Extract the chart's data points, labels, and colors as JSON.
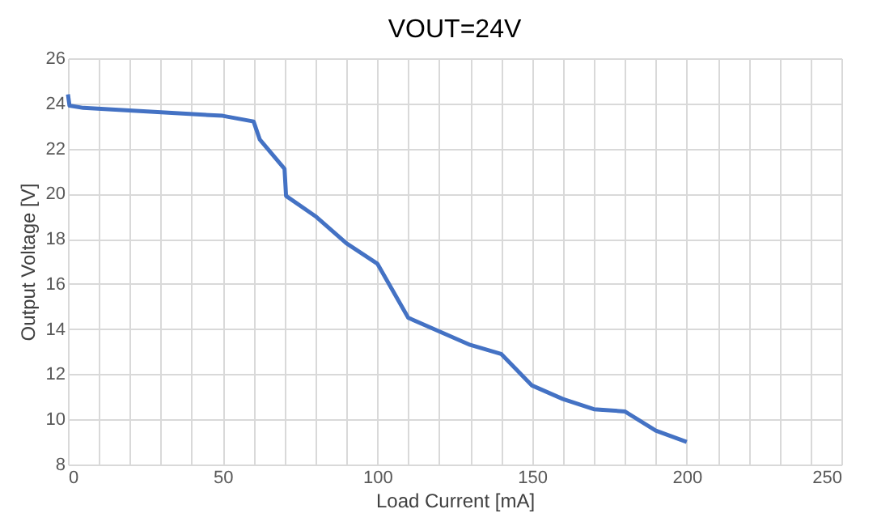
{
  "chart_data": {
    "type": "line",
    "title": "VOUT=24V",
    "xlabel": "Load Current  [mA]",
    "ylabel": "Output Voltage [V]",
    "series": [
      {
        "color": "#4472c4",
        "x": [
          0,
          0.5,
          5,
          50,
          60,
          62,
          70,
          70.5,
          80,
          90,
          100,
          110,
          120,
          130,
          140,
          150,
          160,
          170,
          180,
          190,
          200
        ],
        "values": [
          24.4,
          23.9,
          23.8,
          23.45,
          23.2,
          22.4,
          21.1,
          19.9,
          19,
          17.8,
          16.9,
          14.5,
          13.9,
          13.3,
          12.9,
          11.5,
          10.9,
          10.45,
          10.35,
          9.5,
          9.0
        ]
      }
    ],
    "xlim": [
      0,
      250
    ],
    "xticks": [
      0,
      {
        "value": 10,
        "label": null
      },
      {
        "value": 20,
        "label": null
      },
      {
        "value": 30,
        "label": null
      },
      {
        "value": 40,
        "label": null
      },
      50,
      {
        "value": 60,
        "label": null
      },
      {
        "value": 70,
        "label": null
      },
      {
        "value": 80,
        "label": null
      },
      {
        "value": 90,
        "label": null
      },
      100,
      {
        "value": 110,
        "label": null
      },
      {
        "value": 120,
        "label": null
      },
      {
        "value": 130,
        "label": null
      },
      {
        "value": 140,
        "label": null
      },
      150,
      {
        "value": 160,
        "label": null
      },
      {
        "value": 170,
        "label": null
      },
      {
        "value": 180,
        "label": null
      },
      {
        "value": 190,
        "label": null
      },
      200,
      {
        "value": 210,
        "label": null
      },
      {
        "value": 220,
        "label": null
      },
      {
        "value": 230,
        "label": null
      },
      {
        "value": 240,
        "label": null
      },
      250
    ],
    "ylim": [
      8,
      26
    ],
    "yticks": [
      8,
      10,
      12,
      14,
      16,
      18,
      20,
      22,
      24,
      26
    ],
    "grid": true,
    "marker": "none",
    "line_style": "solid"
  }
}
